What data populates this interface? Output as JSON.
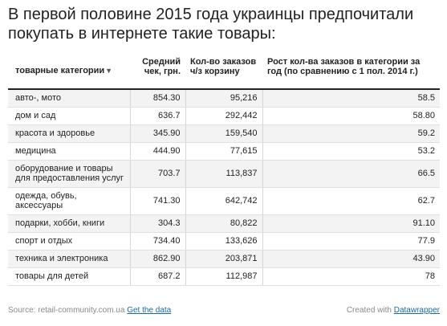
{
  "title": "В первой половине 2015 года украинцы предпочитали покупать в интернете такие товары:",
  "chart_data": {
    "type": "table",
    "columns": [
      {
        "key": "category",
        "label": "товарные категории",
        "sort_icon": "sort-down-triangle-icon"
      },
      {
        "key": "avg_check",
        "label": "Средний чек, грн."
      },
      {
        "key": "orders_per_basket",
        "label": "Кол-во заказов ч/з корзину"
      },
      {
        "key": "growth",
        "label": "Рост кол-ва заказов в категории за год (по сравнению с 1 пол. 2014 г.)"
      }
    ],
    "rows": [
      {
        "category": "авто-, мото",
        "avg_check": "854.30",
        "orders_per_basket": "95,216",
        "growth": "58.5"
      },
      {
        "category": "дом и сад",
        "avg_check": "636.7",
        "orders_per_basket": "292,442",
        "growth": "58.80"
      },
      {
        "category": "красота и здоровье",
        "avg_check": "345.90",
        "orders_per_basket": "159,540",
        "growth": "59.2"
      },
      {
        "category": "медицина",
        "avg_check": "444.90",
        "orders_per_basket": "77,615",
        "growth": "53.2"
      },
      {
        "category": "оборудование и товары для предоставления услуг",
        "avg_check": "703.7",
        "orders_per_basket": "113,837",
        "growth": "66.5"
      },
      {
        "category": "одежда, обувь, аксессуары",
        "avg_check": "741.30",
        "orders_per_basket": "642,742",
        "growth": "62.7"
      },
      {
        "category": "подарки, хобби, книги",
        "avg_check": "304.3",
        "orders_per_basket": "80,822",
        "growth": "91.10"
      },
      {
        "category": "спорт и отдых",
        "avg_check": "734.40",
        "orders_per_basket": "133,626",
        "growth": "77.9"
      },
      {
        "category": "техника и электроника",
        "avg_check": "862.90",
        "orders_per_basket": "203,871",
        "growth": "43.90"
      },
      {
        "category": "товары для детей",
        "avg_check": "687.2",
        "orders_per_basket": "112,987",
        "growth": "78"
      }
    ]
  },
  "footer": {
    "source_text": "Source: retail-community.com.ua",
    "get_data_link": "Get the data",
    "created_with": "Created with",
    "datawrapper_link": "Datawrapper"
  }
}
